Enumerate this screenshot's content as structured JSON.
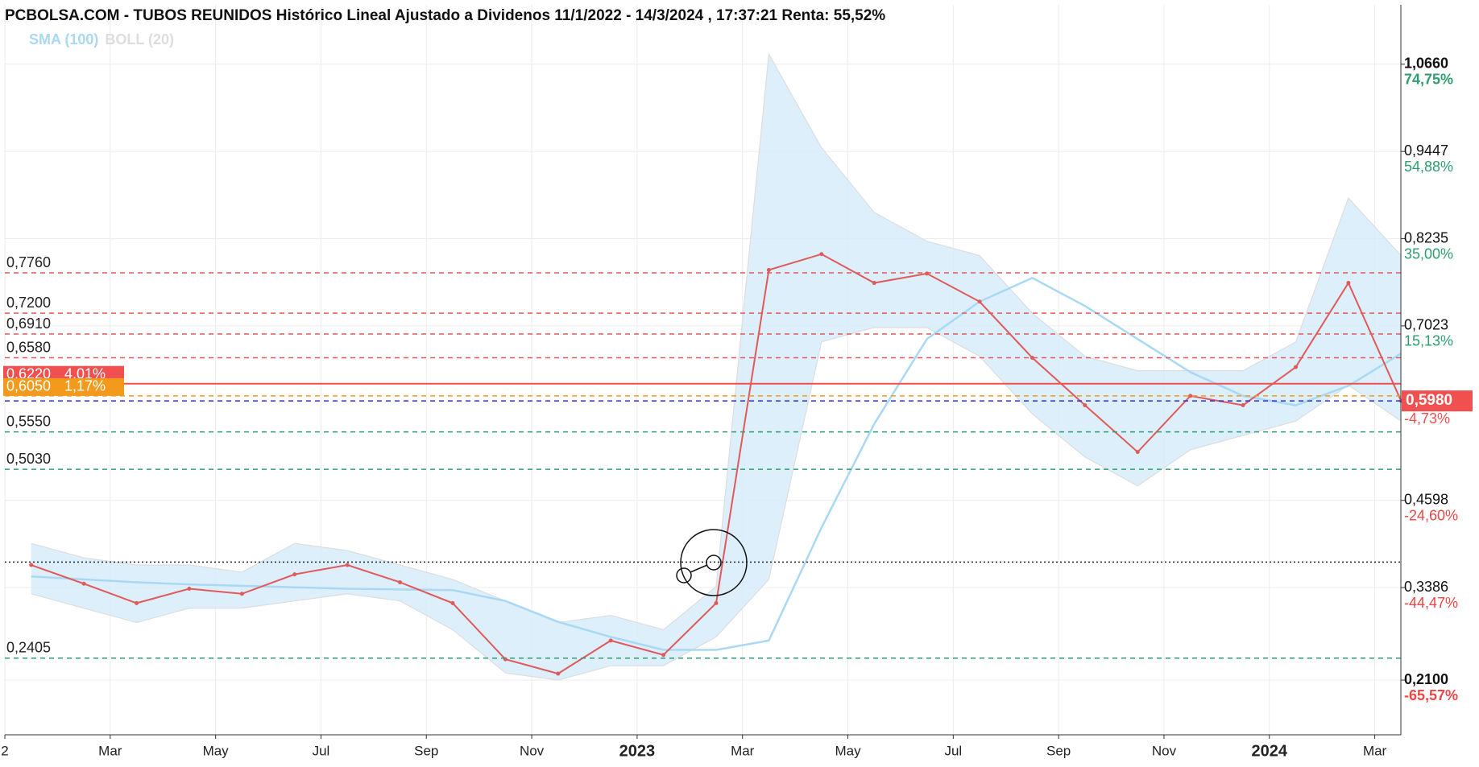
{
  "chart_data": {
    "type": "line",
    "title": "PCBOLSA.COM - TUBOS REUNIDOS Histórico Lineal Ajustado a Dividenos 11/1/2022 - 14/3/2024 , 17:37:21 Renta: 55,52%",
    "x": [
      "2022-01",
      "2022-02",
      "2022-03",
      "2022-04",
      "2022-05",
      "2022-06",
      "2022-07",
      "2022-08",
      "2022-09",
      "2022-10",
      "2022-11",
      "2022-12",
      "2023-01",
      "2023-02",
      "2023-03",
      "2023-04",
      "2023-05",
      "2023-06",
      "2023-07",
      "2023-08",
      "2023-09",
      "2023-10",
      "2023-11",
      "2023-12",
      "2024-01",
      "2024-02",
      "2024-03"
    ],
    "values": [
      0.37,
      0.344,
      0.317,
      0.337,
      0.33,
      0.357,
      0.37,
      0.346,
      0.317,
      0.239,
      0.219,
      0.265,
      0.245,
      0.317,
      0.78,
      0.802,
      0.762,
      0.775,
      0.736,
      0.658,
      0.592,
      0.527,
      0.605,
      0.592,
      0.645,
      0.762,
      0.598
    ],
    "color": "#e05a5a",
    "series": [
      {
        "name": "SMA (100)",
        "color": "#a9d8f5",
        "values": [
          0.354,
          0.35,
          0.346,
          0.343,
          0.341,
          0.339,
          0.337,
          0.336,
          0.335,
          0.32,
          0.291,
          0.27,
          0.252,
          0.252,
          0.265,
          0.422,
          0.566,
          0.684,
          0.736,
          0.769,
          0.73,
          0.684,
          0.638,
          0.605,
          0.592,
          0.619,
          0.664
        ]
      },
      {
        "name": "BOLL (20)",
        "color": "#dddddd",
        "upper": [
          0.4,
          0.38,
          0.37,
          0.37,
          0.36,
          0.4,
          0.39,
          0.37,
          0.35,
          0.32,
          0.29,
          0.3,
          0.28,
          0.34,
          1.08,
          0.95,
          0.86,
          0.82,
          0.8,
          0.72,
          0.66,
          0.64,
          0.64,
          0.64,
          0.68,
          0.88,
          0.8
        ],
        "lower": [
          0.33,
          0.31,
          0.29,
          0.31,
          0.31,
          0.32,
          0.33,
          0.32,
          0.28,
          0.22,
          0.21,
          0.23,
          0.23,
          0.27,
          0.35,
          0.68,
          0.7,
          0.7,
          0.66,
          0.58,
          0.52,
          0.48,
          0.53,
          0.55,
          0.57,
          0.62,
          0.57
        ]
      }
    ],
    "band_color": "#d6ecfa",
    "xlim": [
      "2022-01",
      "2024-04"
    ],
    "xticks": [
      {
        "value": "2022-01",
        "label": "2"
      },
      {
        "value": "2022-03",
        "label": "Mar"
      },
      {
        "value": "2022-05",
        "label": "May"
      },
      {
        "value": "2022-07",
        "label": "Jul"
      },
      {
        "value": "2022-09",
        "label": "Sep"
      },
      {
        "value": "2022-11",
        "label": "Nov"
      },
      {
        "value": "2023-01",
        "label": "2023"
      },
      {
        "value": "2023-03",
        "label": "Mar"
      },
      {
        "value": "2023-05",
        "label": "May"
      },
      {
        "value": "2023-07",
        "label": "Jul"
      },
      {
        "value": "2023-09",
        "label": "Sep"
      },
      {
        "value": "2023-11",
        "label": "Nov"
      },
      {
        "value": "2024-01",
        "label": "2024"
      },
      {
        "value": "2024-03",
        "label": "Mar"
      }
    ],
    "ylim": [
      0.134,
      1.1485
    ],
    "yticks": [
      {
        "value": 1.066,
        "label": "1,0660"
      },
      {
        "value": 0.9447,
        "label": "0,9447"
      },
      {
        "value": 0.8235,
        "label": "0,8235"
      },
      {
        "value": 0.7023,
        "label": "0,7023"
      },
      {
        "value": 0.4598,
        "label": "0,4598"
      },
      {
        "value": 0.3386,
        "label": "0,3386"
      },
      {
        "value": 0.21,
        "label": "0,2100"
      }
    ],
    "ytick_changes": [
      "74,75%",
      "54,88%",
      "35,00%",
      "15,13%",
      "-24,60%",
      "-44,47%",
      "-65,57%"
    ],
    "grid": true,
    "last_price": {
      "value": 0.598,
      "label": "0,5980",
      "change": "-4,73%",
      "color": "#f05050"
    },
    "levels": [
      {
        "value": 0.776,
        "label": "0,7760",
        "color": "#e05a5a",
        "style": "dashed"
      },
      {
        "value": 0.72,
        "label": "0,7200",
        "color": "#e05a5a",
        "style": "dashed"
      },
      {
        "value": 0.691,
        "label": "0,6910",
        "color": "#e05a5a",
        "style": "dashed"
      },
      {
        "value": 0.658,
        "label": "0,6580",
        "color": "#e05a5a",
        "style": "dashed"
      },
      {
        "value": 0.622,
        "label": "0,6220",
        "change": "4,01%",
        "color": "#f05050",
        "style": "solid"
      },
      {
        "value": 0.605,
        "label": "0,6050",
        "change": "1,17%",
        "color": "#f39a1d",
        "style": "dashed"
      },
      {
        "value": 0.598,
        "color": "#2b2bf0",
        "style": "dashed"
      },
      {
        "value": 0.555,
        "label": "0,5550",
        "color": "#2e9e6e",
        "style": "dashed"
      },
      {
        "value": 0.503,
        "label": "0,5030",
        "color": "#2e9e6e",
        "style": "dashed"
      },
      {
        "value": 0.374,
        "color": "#222222",
        "style": "dotted"
      },
      {
        "value": 0.2405,
        "label": "0,2405",
        "color": "#2e9e6e",
        "style": "dashed"
      }
    ]
  }
}
